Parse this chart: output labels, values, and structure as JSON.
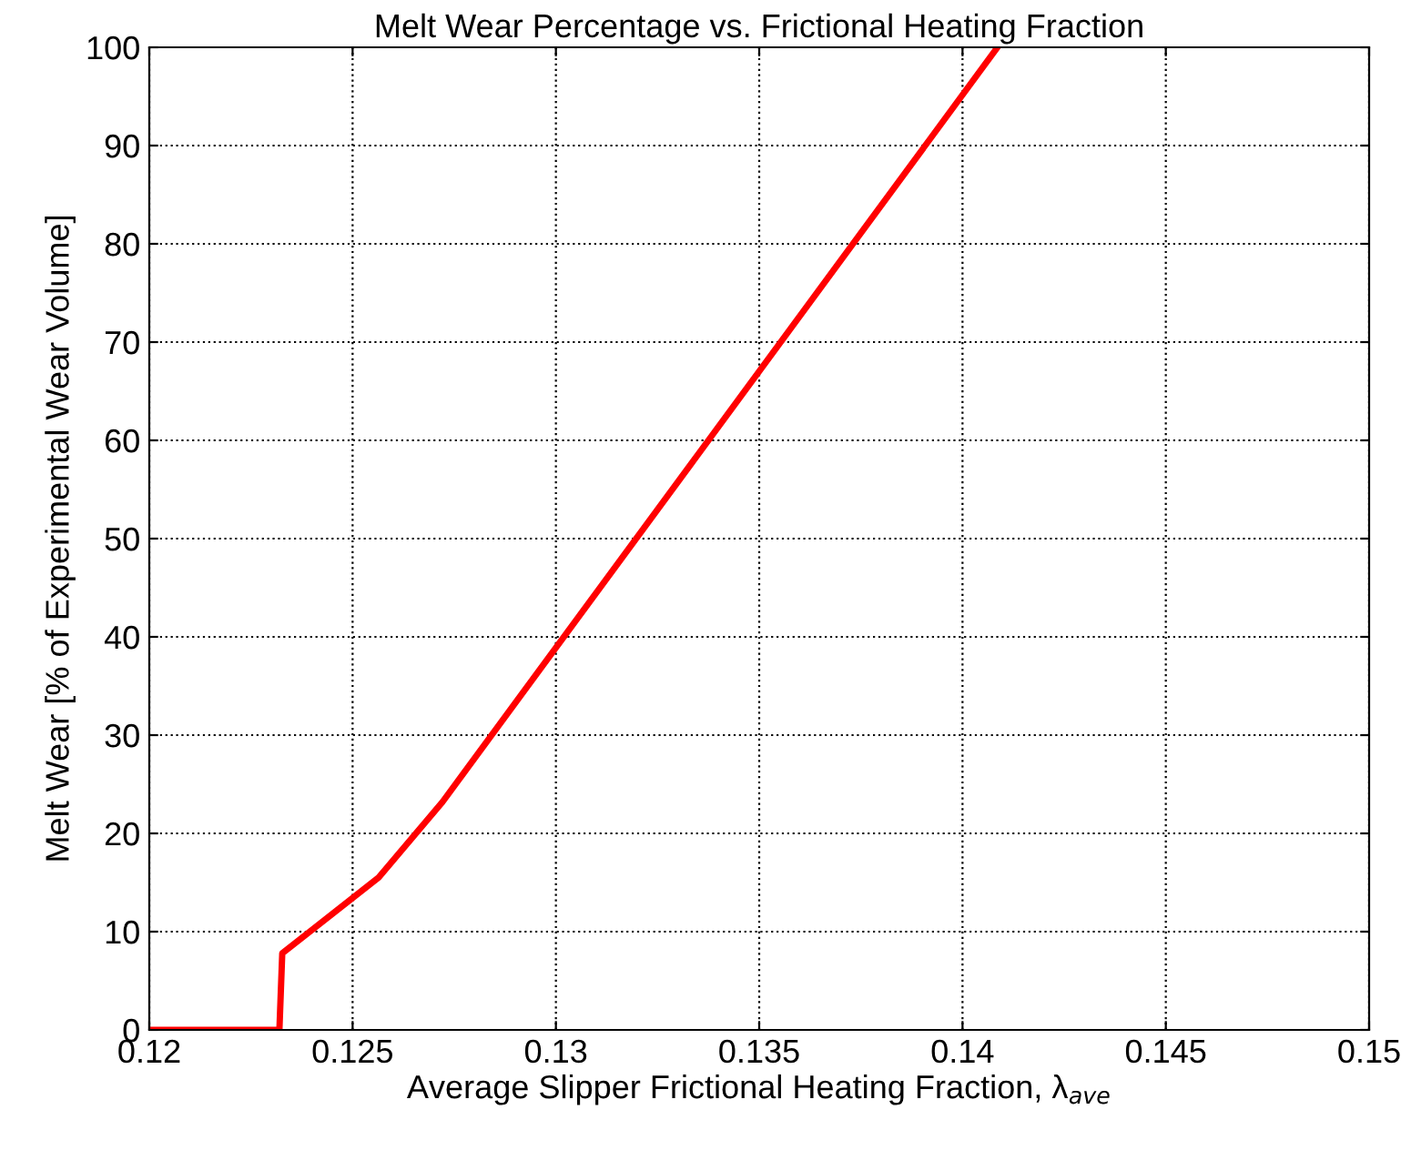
{
  "chart_data": {
    "type": "line",
    "title": "Melt Wear Percentage vs. Frictional Heating Fraction",
    "xlabel": "Average Slipper Frictional Heating Fraction, λ$_{ave}$",
    "ylabel": "Melt Wear [% of Experimental Wear Volume]",
    "x": [
      0.12,
      0.1232,
      0.12327,
      0.12564,
      0.12721,
      0.14086
    ],
    "series": [
      {
        "color": "#ff0000",
        "values": [
          0,
          0,
          7.8,
          15.5,
          23.2,
          100
        ]
      }
    ],
    "xlim": [
      0.12,
      0.15
    ],
    "xticks": [
      0.12,
      0.125,
      0.13,
      0.135,
      0.14,
      0.145,
      0.15
    ],
    "ylim": [
      0,
      100
    ],
    "yticks": [
      0,
      10,
      20,
      30,
      40,
      50,
      60,
      70,
      80,
      90,
      100
    ],
    "grid": true,
    "line_style": "solid",
    "marker": "none"
  }
}
